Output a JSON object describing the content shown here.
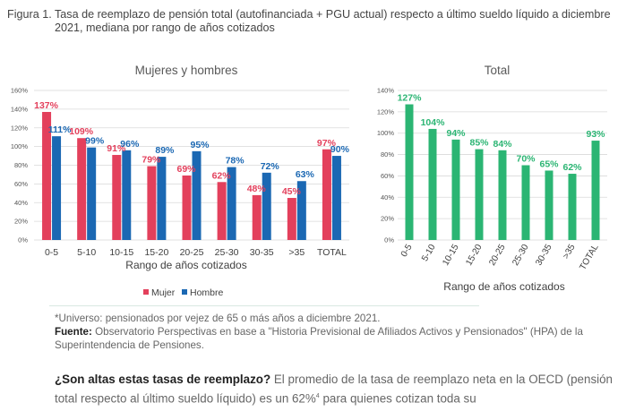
{
  "figure": {
    "number": "Figura 1.",
    "title": "Tasa de reemplazo de pensión total (autofinanciada + PGU actual) respecto a último sueldo líquido a diciembre 2021, mediana por rango de años cotizados"
  },
  "colors": {
    "mujer": "#e3405c",
    "hombre": "#1b68b3",
    "total": "#2bb573",
    "axis_text": "#555555",
    "grid": "#d9d9d9"
  },
  "chart_data": [
    {
      "type": "bar",
      "title": "Mujeres y hombres",
      "xlabel": "Rango de años cotizados",
      "ylim": [
        0,
        160
      ],
      "yticks": [
        "0%",
        "20%",
        "40%",
        "60%",
        "80%",
        "100%",
        "120%",
        "140%",
        "160%"
      ],
      "categories": [
        "0-5",
        "5-10",
        "10-15",
        "15-20",
        "20-25",
        "25-30",
        "30-35",
        ">35",
        "TOTAL"
      ],
      "series": [
        {
          "name": "Mujer",
          "values": [
            137,
            109,
            91,
            79,
            69,
            62,
            48,
            45,
            97
          ],
          "labels": [
            "137%",
            "109%",
            "91%",
            "79%",
            "69%",
            "62%",
            "48%",
            "45%",
            "97%"
          ]
        },
        {
          "name": "Hombre",
          "values": [
            111,
            99,
            96,
            89,
            95,
            78,
            72,
            63,
            90
          ],
          "labels": [
            "111%",
            "99%",
            "96%",
            "89%",
            "95%",
            "78%",
            "72%",
            "63%",
            "90%"
          ]
        }
      ],
      "legend": "bottom"
    },
    {
      "type": "bar",
      "title": "Total",
      "xlabel": "Rango de años cotizados",
      "ylim": [
        0,
        140
      ],
      "yticks": [
        "0%",
        "20%",
        "40%",
        "60%",
        "80%",
        "100%",
        "120%",
        "140%"
      ],
      "categories": [
        "0-5",
        "5-10",
        "10-15",
        "15-20",
        "20-25",
        "25-30",
        "30-35",
        ">35",
        "TOTAL"
      ],
      "series": [
        {
          "values": [
            127,
            104,
            94,
            85,
            84,
            70,
            65,
            62,
            93
          ],
          "labels": [
            "127%",
            "104%",
            "94%",
            "85%",
            "84%",
            "70%",
            "65%",
            "62%",
            "93%"
          ]
        }
      ]
    }
  ],
  "source": {
    "universe": "*Universo: pensionados por vejez de 65 o más años a diciembre 2021.",
    "label": "Fuente:",
    "text": "Observatorio Perspectivas en base a \"Historia Previsional de Afiliados Activos y Pensionados\" (HPA) de la Superintendencia de Pensiones."
  },
  "paragraph": {
    "bold": "¿Son altas estas tasas de reemplazo?",
    "text": "El promedio de la tasa de reemplazo neta en la OECD (pensión total respecto al último sueldo líquido) es un 62%",
    "footnote": "4",
    "tail": "para quienes cotizan toda su"
  }
}
